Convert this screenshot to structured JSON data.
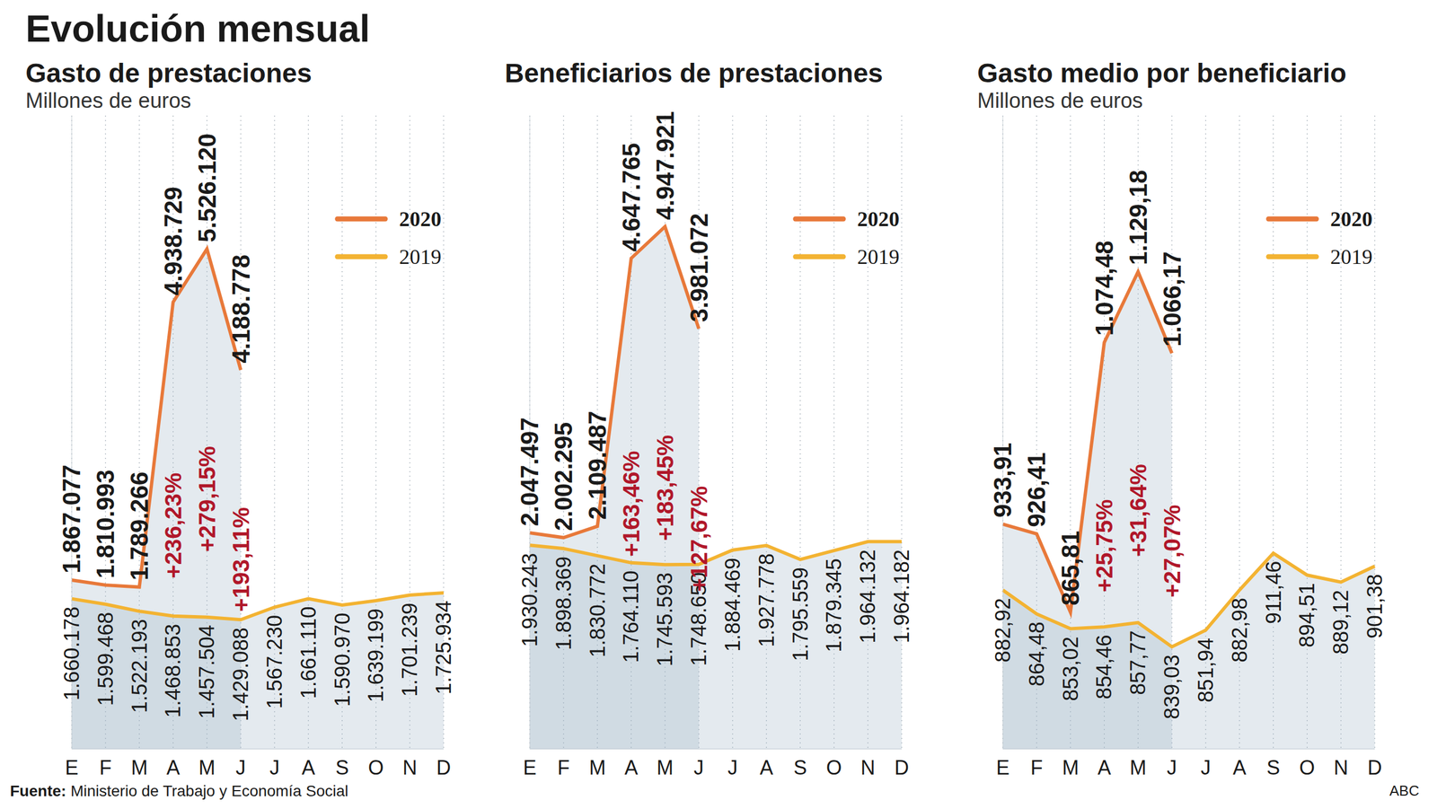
{
  "title": "Evolución mensual",
  "source_label": "Fuente:",
  "source": "Ministerio de Trabajo y Economía Social",
  "credit": "ABC",
  "chart_data": [
    {
      "type": "line",
      "title": "Gasto de prestaciones",
      "subtitle": "Millones de euros",
      "categories": [
        "E",
        "F",
        "M",
        "A",
        "M",
        "J",
        "J",
        "A",
        "S",
        "O",
        "N",
        "D"
      ],
      "series": [
        {
          "name": "2020",
          "color": "#e8793a",
          "values": [
            1867077,
            1810993,
            1789266,
            4938729,
            5526120,
            4188778,
            null,
            null,
            null,
            null,
            null,
            null
          ],
          "value_labels": [
            "1.867.077",
            "1.810.993",
            "1.789.266",
            "4.938.729",
            "5.526.120",
            "4.188.778",
            null,
            null,
            null,
            null,
            null,
            null
          ],
          "change_pct": [
            null,
            null,
            null,
            236.23,
            279.15,
            193.11,
            null,
            null,
            null,
            null,
            null,
            null
          ],
          "change_labels": [
            null,
            null,
            null,
            "+236,23%",
            "+279,15%",
            "+193,11%",
            null,
            null,
            null,
            null,
            null,
            null
          ]
        },
        {
          "name": "2019",
          "color": "#f3b332",
          "values": [
            1660178,
            1599468,
            1522193,
            1468853,
            1457504,
            1429088,
            1567230,
            1661110,
            1590970,
            1639199,
            1701239,
            1725934
          ],
          "value_labels": [
            "1.660.178",
            "1.599.468",
            "1.522.193",
            "1.468.853",
            "1.457.504",
            "1.429.088",
            "1.567.230",
            "1.661.110",
            "1.590.970",
            "1.639.199",
            "1.701.239",
            "1.725.934"
          ]
        }
      ],
      "ylim": [
        0,
        7000000
      ],
      "grid": true,
      "legend": "right",
      "data_labels": true,
      "tick_labels": "x"
    },
    {
      "type": "line",
      "title": "Beneficiarios de prestaciones",
      "categories": [
        "E",
        "F",
        "M",
        "A",
        "M",
        "J",
        "J",
        "A",
        "S",
        "O",
        "N",
        "D"
      ],
      "series": [
        {
          "name": "2020",
          "color": "#e8793a",
          "values": [
            2047497,
            2002295,
            2109487,
            4647765,
            4947921,
            3981072,
            null,
            null,
            null,
            null,
            null,
            null
          ],
          "value_labels": [
            "2.047.497",
            "2.002.295",
            "2.109.487",
            "4.647.765",
            "4.947.921",
            "3.981.072",
            null,
            null,
            null,
            null,
            null,
            null
          ],
          "change_pct": [
            null,
            null,
            null,
            163.46,
            183.45,
            127.67,
            null,
            null,
            null,
            null,
            null,
            null
          ],
          "change_labels": [
            null,
            null,
            null,
            "+163,46%",
            "+183,45%",
            "+127,67%",
            null,
            null,
            null,
            null,
            null,
            null
          ]
        },
        {
          "name": "2019",
          "color": "#f3b332",
          "values": [
            1930243,
            1898369,
            1830772,
            1764110,
            1745593,
            1748650,
            1884469,
            1927778,
            1795559,
            1879345,
            1964132,
            1964182
          ],
          "value_labels": [
            "1.930.243",
            "1.898.369",
            "1.830.772",
            "1.764.110",
            "1.745.593",
            "1.748.650",
            "1.884.469",
            "1.927.778",
            "1.795.559",
            "1.879.345",
            "1.964.132",
            "1.964.182"
          ]
        }
      ],
      "ylim": [
        0,
        6000000
      ],
      "grid": true,
      "legend": "right",
      "data_labels": true,
      "tick_labels": "x"
    },
    {
      "type": "line",
      "title": "Gasto medio por beneficiario",
      "subtitle": "Millones de euros",
      "categories": [
        "E",
        "F",
        "M",
        "A",
        "M",
        "J",
        "J",
        "A",
        "S",
        "O",
        "N",
        "D"
      ],
      "series": [
        {
          "name": "2020",
          "color": "#e8793a",
          "values": [
            933.91,
            926.41,
            865.81,
            1074.48,
            1129.18,
            1066.17,
            null,
            null,
            null,
            null,
            null,
            null
          ],
          "value_labels": [
            "933,91",
            "926,41",
            "865,81",
            "1.074,48",
            "1.129,18",
            "1.066,17",
            null,
            null,
            null,
            null,
            null,
            null
          ],
          "change_pct": [
            null,
            null,
            null,
            25.75,
            31.64,
            27.07,
            null,
            null,
            null,
            null,
            null,
            null
          ],
          "change_labels": [
            null,
            null,
            null,
            "+25,75%",
            "+31,64%",
            "+27,07%",
            null,
            null,
            null,
            null,
            null,
            null
          ]
        },
        {
          "name": "2019",
          "color": "#f3b332",
          "values": [
            882.92,
            864.48,
            853.02,
            854.46,
            857.77,
            839.03,
            851.94,
            882.98,
            911.46,
            894.51,
            889.12,
            901.38
          ],
          "value_labels": [
            "882,92",
            "864,48",
            "853,02",
            "854,46",
            "857,77",
            "839,03",
            "851,94",
            "882,98",
            "911,46",
            "894,51",
            "889,12",
            "901,38"
          ]
        }
      ],
      "ylim": [
        760,
        1250
      ],
      "grid": true,
      "legend": "right",
      "data_labels": true,
      "tick_labels": "x"
    }
  ]
}
